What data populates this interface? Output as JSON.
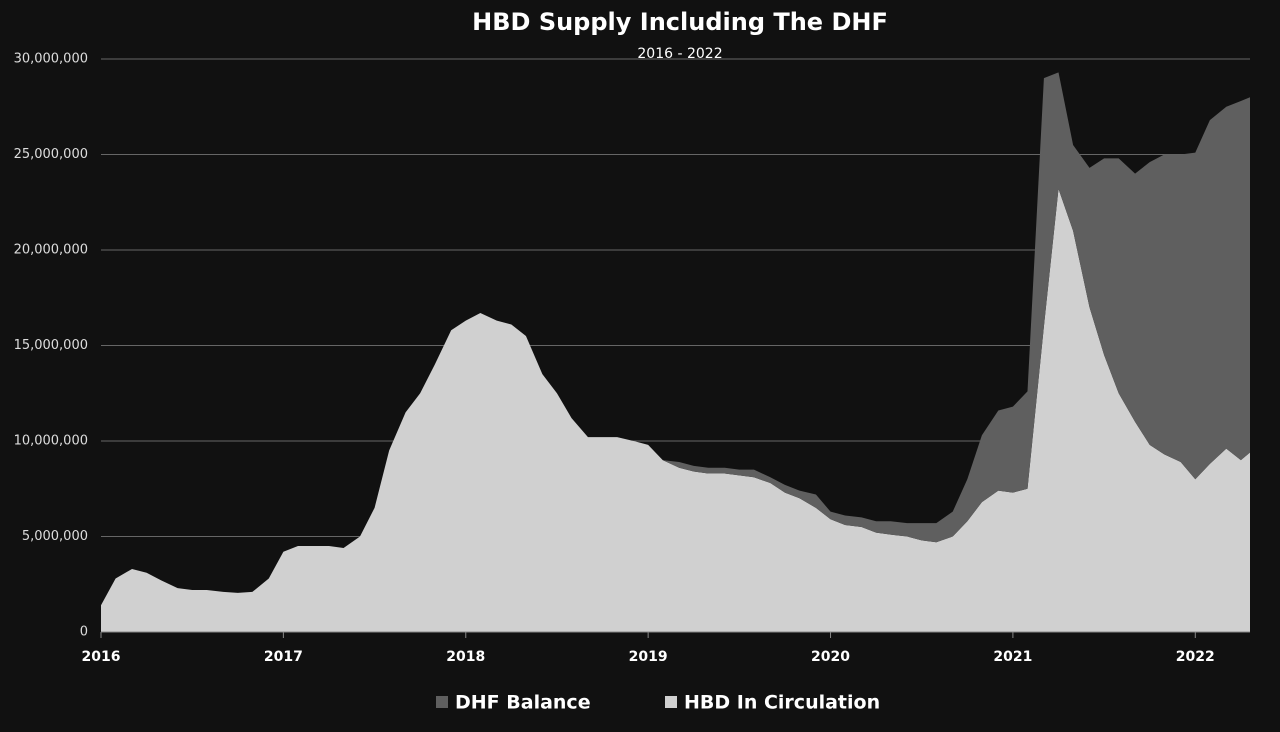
{
  "chart_data": {
    "type": "stacked-area",
    "title": "HBD Supply Including The DHF",
    "subtitle": "2016 - 2022",
    "x": [
      2016.0,
      2016.08,
      2016.17,
      2016.25,
      2016.33,
      2016.42,
      2016.5,
      2016.58,
      2016.67,
      2016.75,
      2016.83,
      2016.92,
      2017.0,
      2017.08,
      2017.17,
      2017.25,
      2017.33,
      2017.42,
      2017.5,
      2017.58,
      2017.67,
      2017.75,
      2017.83,
      2017.92,
      2018.0,
      2018.08,
      2018.17,
      2018.25,
      2018.33,
      2018.42,
      2018.5,
      2018.58,
      2018.67,
      2018.75,
      2018.83,
      2018.92,
      2019.0,
      2019.08,
      2019.17,
      2019.25,
      2019.33,
      2019.42,
      2019.5,
      2019.58,
      2019.67,
      2019.75,
      2019.83,
      2019.92,
      2020.0,
      2020.08,
      2020.17,
      2020.25,
      2020.33,
      2020.42,
      2020.5,
      2020.58,
      2020.67,
      2020.75,
      2020.83,
      2020.92,
      2021.0,
      2021.08,
      2021.17,
      2021.25,
      2021.33,
      2021.42,
      2021.5,
      2021.58,
      2021.67,
      2021.75,
      2021.83,
      2021.92,
      2022.0,
      2022.08,
      2022.17,
      2022.25,
      2022.3
    ],
    "series": [
      {
        "name": "DHF Balance",
        "color": "#5f5f5f",
        "values": [
          0,
          0,
          0,
          0,
          0,
          0,
          0,
          0,
          0,
          0,
          0,
          0,
          0,
          0,
          0,
          0,
          0,
          0,
          0,
          0,
          0,
          0,
          0,
          0,
          0,
          0,
          0,
          0,
          0,
          0,
          0,
          0,
          0,
          0,
          0,
          0,
          0,
          0,
          300000,
          300000,
          300000,
          300000,
          300000,
          400000,
          300000,
          400000,
          400000,
          700000,
          400000,
          500000,
          500000,
          600000,
          700000,
          700000,
          900000,
          1000000,
          1300000,
          2200000,
          3500000,
          4200000,
          4500000,
          5100000,
          13000000,
          6100000,
          4500000,
          7300000,
          10300000,
          12300000,
          13000000,
          14800000,
          15700000,
          16100000,
          17100000,
          18000000,
          17900000,
          18800000,
          18600000
        ]
      },
      {
        "name": "HBD In Circulation",
        "color": "#d0d0d0",
        "values": [
          1400000,
          2800000,
          3300000,
          3100000,
          2700000,
          2300000,
          2200000,
          2200000,
          2100000,
          2050000,
          2100000,
          2800000,
          4200000,
          4500000,
          4500000,
          4500000,
          4400000,
          5000000,
          6500000,
          9500000,
          11500000,
          12500000,
          14000000,
          15800000,
          16300000,
          16700000,
          16300000,
          16100000,
          15500000,
          13500000,
          12500000,
          11200000,
          10200000,
          10200000,
          10200000,
          10000000,
          9800000,
          9000000,
          8600000,
          8400000,
          8300000,
          8300000,
          8200000,
          8100000,
          7800000,
          7300000,
          7000000,
          6500000,
          5900000,
          5600000,
          5500000,
          5200000,
          5100000,
          5000000,
          4800000,
          4700000,
          5000000,
          5800000,
          6800000,
          7400000,
          7300000,
          7500000,
          16000000,
          23200000,
          21000000,
          17000000,
          14500000,
          12500000,
          11000000,
          9800000,
          9300000,
          8900000,
          8000000,
          8800000,
          9600000,
          9000000,
          9400000
        ]
      }
    ],
    "xlim": [
      2016,
      2022.3
    ],
    "xticks": [
      2016,
      2017,
      2018,
      2019,
      2020,
      2021,
      2022
    ],
    "ylim": [
      0,
      30000000
    ],
    "yticks": [
      0,
      {
        "value": 5000000,
        "label": "5,000,000"
      },
      {
        "value": 10000000,
        "label": "10,000,000"
      },
      {
        "value": 15000000,
        "label": "15,000,000"
      },
      {
        "value": 20000000,
        "label": "20,000,000"
      },
      {
        "value": 25000000,
        "label": "25,000,000"
      },
      {
        "value": 30000000,
        "label": "30,000,000"
      }
    ],
    "grid": true
  }
}
